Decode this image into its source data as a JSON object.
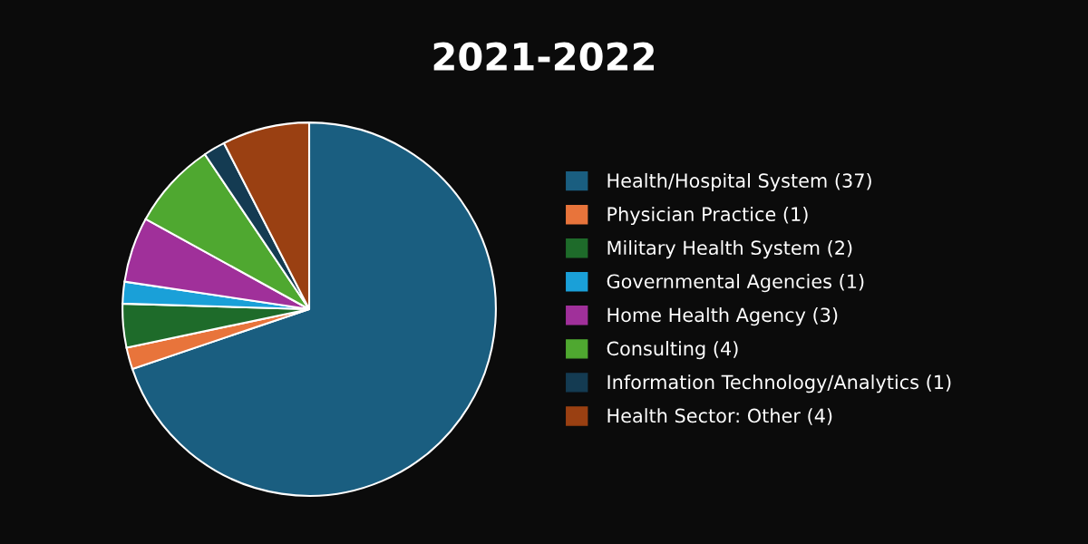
{
  "chart_data": {
    "type": "pie",
    "title": "2021-2022",
    "categories": [
      "Health/Hospital System (37)",
      "Physician Practice (1)",
      "Military Health System (2)",
      "Governmental Agencies (1)",
      "Home Health Agency (3)",
      "Consulting (4)",
      "Information Technology/Analytics (1)",
      "Health Sector: Other (4)"
    ],
    "values": [
      37,
      1,
      2,
      1,
      3,
      4,
      1,
      4
    ],
    "colors": [
      "#1a5e80",
      "#e8743b",
      "#1e6b2a",
      "#1aa0d8",
      "#a0309a",
      "#4fa830",
      "#143b52",
      "#9a4012"
    ],
    "legend": "right"
  }
}
